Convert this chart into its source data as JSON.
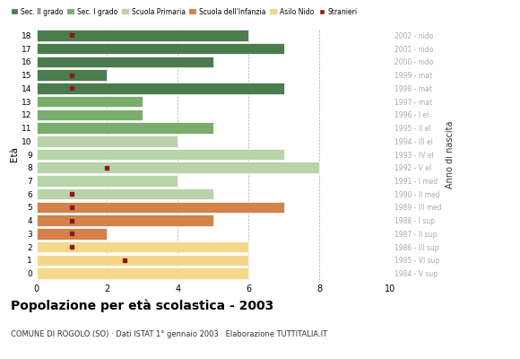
{
  "ages": [
    18,
    17,
    16,
    15,
    14,
    13,
    12,
    11,
    10,
    9,
    8,
    7,
    6,
    5,
    4,
    3,
    2,
    1,
    0
  ],
  "anno_di_nascita": [
    "1984 - V sup",
    "1985 - VI sup",
    "1986 - III sup",
    "1987 - II sup",
    "1988 - I sup",
    "1989 - III med",
    "1990 - II med",
    "1991 - I med",
    "1992 - V el",
    "1993 - IV el",
    "1994 - III el",
    "1995 - II el",
    "1996 - I el",
    "1997 - mat",
    "1998 - mat",
    "1999 - mat",
    "2000 - nido",
    "2001 - nido",
    "2002 - nido"
  ],
  "bar_values": [
    6,
    7,
    5,
    2,
    7,
    3,
    3,
    5,
    4,
    7,
    8,
    4,
    5,
    7,
    5,
    2,
    6,
    6,
    6
  ],
  "bar_colors": [
    "#4a7c4e",
    "#4a7c4e",
    "#4a7c4e",
    "#4a7c4e",
    "#4a7c4e",
    "#7aac6e",
    "#7aac6e",
    "#7aac6e",
    "#b8d4a8",
    "#b8d4a8",
    "#b8d4a8",
    "#b8d4a8",
    "#b8d4a8",
    "#d2824a",
    "#d2824a",
    "#d2824a",
    "#f5d78a",
    "#f5d78a",
    "#f5d78a"
  ],
  "stranieri_x": [
    1,
    0.3,
    0.3,
    1,
    1,
    0.3,
    0.3,
    0.3,
    0.3,
    0.3,
    2,
    0.3,
    1,
    1,
    1,
    1,
    1,
    2.5,
    0.3
  ],
  "stranieri_show": [
    true,
    false,
    false,
    true,
    true,
    false,
    false,
    false,
    false,
    false,
    true,
    false,
    true,
    true,
    true,
    true,
    true,
    true,
    false
  ],
  "title": "Popolazione per età scolastica - 2003",
  "subtitle": "COMUNE DI ROGOLO (SO) · Dati ISTAT 1° gennaio 2003 · Elaborazione TUTTITALIA.IT",
  "ylabel": "Età",
  "right_ylabel": "Anno di nascita",
  "legend_labels": [
    "Sec. II grado",
    "Sec. I grado",
    "Scuola Primaria",
    "Scuola dell'Infanzia",
    "Asilo Nido",
    "Stranieri"
  ],
  "legend_colors": [
    "#4a7c4e",
    "#7aac6e",
    "#b8d4a8",
    "#d2824a",
    "#f5d78a",
    "#8b1a1a"
  ],
  "xlim": [
    0,
    10
  ],
  "xticks": [
    0,
    2,
    4,
    6,
    8,
    10
  ],
  "stranieri_color": "#8b1a1a",
  "bg_color": "#ffffff",
  "grid_color": "#aaaaaa",
  "right_label_color": "#aaaaaa"
}
